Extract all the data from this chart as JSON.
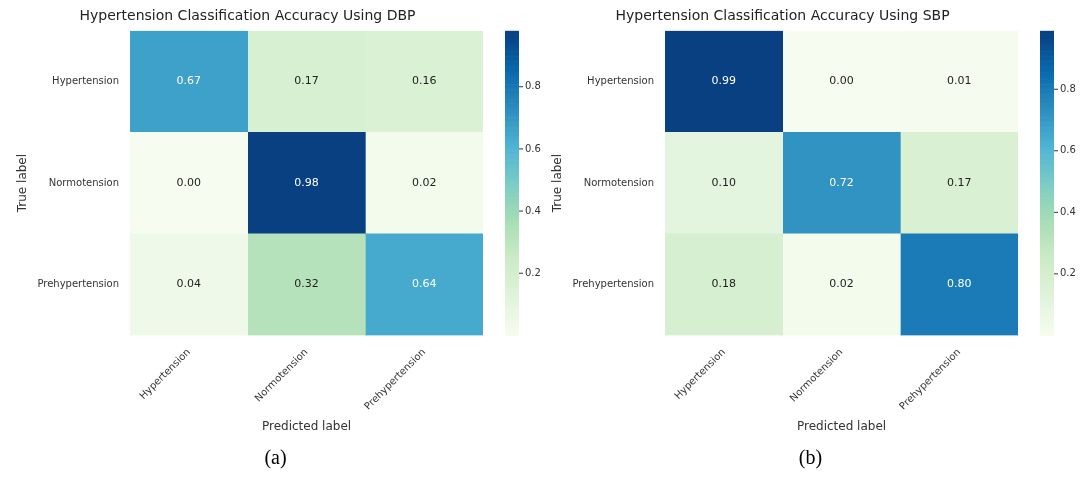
{
  "chart_data": [
    {
      "type": "heatmap",
      "title": "Hypertension Classification Accuracy Using DBP",
      "xlabel": "Predicted label",
      "ylabel": "True label",
      "categories": [
        "Hypertension",
        "Normotension",
        "Prehypertension"
      ],
      "y_categories": [
        "Hypertension",
        "Normotension",
        "Prehypertension"
      ],
      "cells": [
        [
          0.67,
          0.17,
          0.16
        ],
        [
          0.0,
          0.98,
          0.02
        ],
        [
          0.04,
          0.32,
          0.64
        ]
      ],
      "cell_labels": [
        [
          "0.67",
          "0.17",
          "0.16"
        ],
        [
          "0.00",
          "0.98",
          "0.02"
        ],
        [
          "0.04",
          "0.32",
          "0.64"
        ]
      ],
      "clim": [
        0,
        0.98
      ],
      "cticks": [
        0.2,
        0.4,
        0.6,
        0.8
      ],
      "annotations": [
        "(a)"
      ]
    },
    {
      "type": "heatmap",
      "title": "Hypertension Classification Accuracy Using SBP",
      "xlabel": "Predicted label",
      "ylabel": "True label",
      "categories": [
        "Hypertension",
        "Normotension",
        "Prehypertension"
      ],
      "y_categories": [
        "Hypertension",
        "Normotension",
        "Prehypertension"
      ],
      "cells": [
        [
          0.99,
          0.0,
          0.01
        ],
        [
          0.1,
          0.72,
          0.17
        ],
        [
          0.18,
          0.02,
          0.8
        ]
      ],
      "cell_labels": [
        [
          "0.99",
          "0.00",
          "0.01"
        ],
        [
          "0.10",
          "0.72",
          "0.17"
        ],
        [
          "0.18",
          "0.02",
          "0.80"
        ]
      ],
      "clim": [
        0,
        0.99
      ],
      "cticks": [
        0.2,
        0.4,
        0.6,
        0.8
      ],
      "annotations": [
        "(b)"
      ]
    }
  ]
}
